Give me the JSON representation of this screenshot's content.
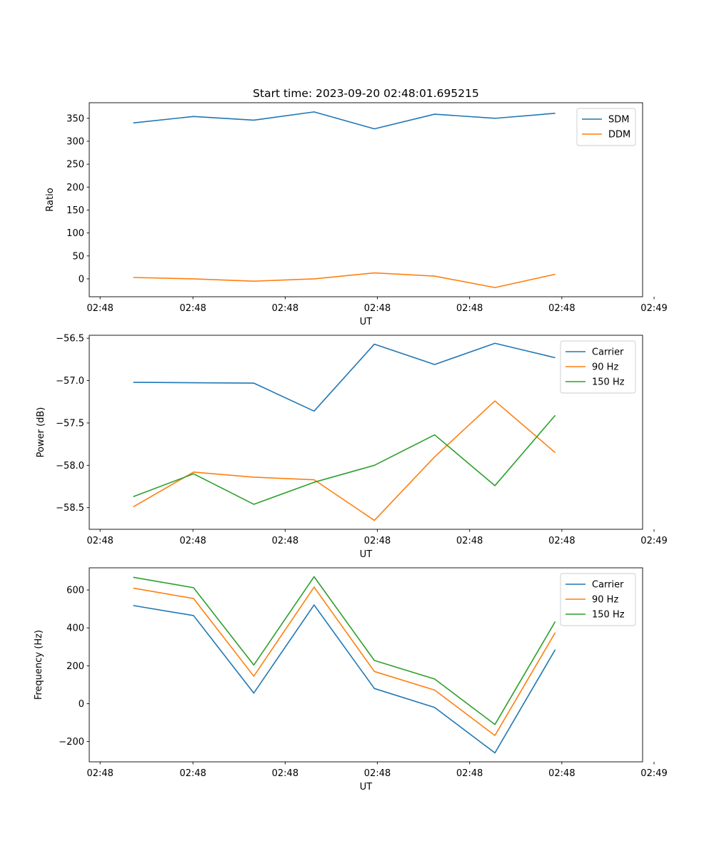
{
  "figure_title": "Start time: 2023-09-20 02:48:01.695215",
  "colors": {
    "blue": "#1f77b4",
    "orange": "#ff7f0e",
    "green": "#2ca02c"
  },
  "chart_data": [
    {
      "type": "line",
      "title": "Start time: 2023-09-20 02:48:01.695215",
      "xlabel": "UT",
      "ylabel": "Ratio",
      "x": [
        1,
        2,
        3,
        4,
        5,
        6,
        7,
        8
      ],
      "xlim": [
        0.27,
        9.45
      ],
      "xticks": [
        0.45,
        1.99,
        3.52,
        5.05,
        6.58,
        8.11,
        9.64
      ],
      "xtick_labels": [
        "02:48",
        "02:48",
        "02:48",
        "02:48",
        "02:48",
        "02:48",
        "02:49"
      ],
      "ylim": [
        -39,
        384
      ],
      "yticks": [
        0,
        50,
        100,
        150,
        200,
        250,
        300,
        350
      ],
      "ytick_labels": [
        "0",
        "50",
        "100",
        "150",
        "200",
        "250",
        "300",
        "350"
      ],
      "legend": "top-right",
      "series": [
        {
          "name": "SDM",
          "color": "#1f77b4",
          "values": [
            340,
            354,
            346,
            364,
            327,
            359,
            350,
            361
          ]
        },
        {
          "name": "DDM",
          "color": "#ff7f0e",
          "values": [
            3,
            0,
            -5,
            0,
            13,
            6,
            -19,
            10
          ]
        }
      ]
    },
    {
      "type": "line",
      "title": "",
      "xlabel": "UT",
      "ylabel": "Power (dB)",
      "x": [
        1,
        2,
        3,
        4,
        5,
        6,
        7,
        8
      ],
      "xlim": [
        0.27,
        9.45
      ],
      "xticks": [
        0.45,
        1.99,
        3.52,
        5.05,
        6.58,
        8.11,
        9.64
      ],
      "xtick_labels": [
        "02:48",
        "02:48",
        "02:48",
        "02:48",
        "02:48",
        "02:48",
        "02:49"
      ],
      "ylim": [
        -58.755,
        -56.465
      ],
      "yticks": [
        -58.5,
        -58.0,
        -57.5,
        -57.0,
        -56.5
      ],
      "ytick_labels": [
        "−58.5",
        "−58.0",
        "−57.5",
        "−57.0",
        "−56.5"
      ],
      "legend": "top-right",
      "series": [
        {
          "name": "Carrier",
          "color": "#1f77b4",
          "values": [
            -57.02,
            -57.025,
            -57.03,
            -57.36,
            -56.57,
            -56.81,
            -56.56,
            -56.73
          ]
        },
        {
          "name": "90 Hz",
          "color": "#ff7f0e",
          "values": [
            -58.49,
            -58.08,
            -58.14,
            -58.17,
            -58.65,
            -57.9,
            -57.24,
            -57.85
          ]
        },
        {
          "name": "150 Hz",
          "color": "#2ca02c",
          "values": [
            -58.37,
            -58.1,
            -58.46,
            -58.2,
            -58.0,
            -57.64,
            -58.24,
            -57.41
          ]
        }
      ]
    },
    {
      "type": "line",
      "title": "",
      "xlabel": "UT",
      "ylabel": "Frequency (Hz)",
      "x": [
        1,
        2,
        3,
        4,
        5,
        6,
        7,
        8
      ],
      "xlim": [
        0.27,
        9.45
      ],
      "xticks": [
        0.45,
        1.99,
        3.52,
        5.05,
        6.58,
        8.11,
        9.64
      ],
      "xtick_labels": [
        "02:48",
        "02:48",
        "02:48",
        "02:48",
        "02:48",
        "02:48",
        "02:49"
      ],
      "ylim": [
        -307,
        717
      ],
      "yticks": [
        -200,
        0,
        200,
        400,
        600
      ],
      "ytick_labels": [
        "−200",
        "0",
        "200",
        "400",
        "600"
      ],
      "legend": "top-right",
      "series": [
        {
          "name": "Carrier",
          "color": "#1f77b4",
          "values": [
            518,
            465,
            56,
            521,
            80,
            -20,
            -260,
            285
          ]
        },
        {
          "name": "90 Hz",
          "color": "#ff7f0e",
          "values": [
            610,
            555,
            145,
            615,
            170,
            72,
            -168,
            375
          ]
        },
        {
          "name": "150 Hz",
          "color": "#2ca02c",
          "values": [
            667,
            612,
            204,
            670,
            228,
            130,
            -110,
            433
          ]
        }
      ]
    }
  ]
}
